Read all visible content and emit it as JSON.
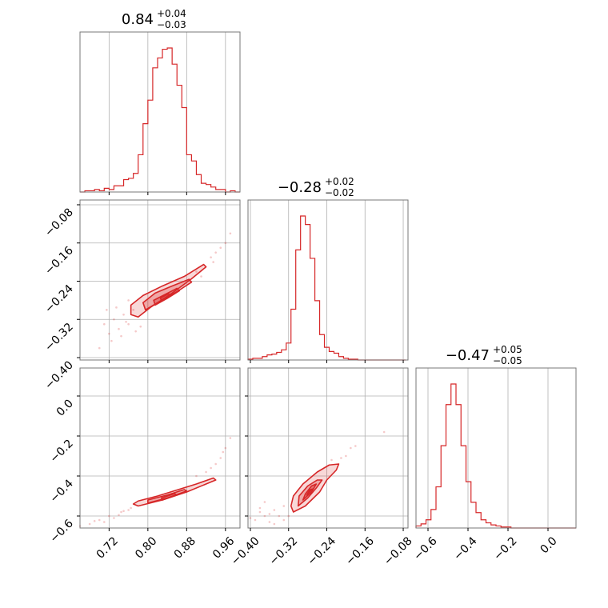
{
  "chart_data": {
    "type": "corner",
    "color": "#d62728",
    "grid": true,
    "params": [
      {
        "index": 0,
        "median": 0.84,
        "sigma_plus": 0.04,
        "sigma_minus": 0.03,
        "title_main": "0.84",
        "title_sup": "+0.04",
        "title_sub": "−0.03",
        "range": [
          0.66,
          0.99
        ],
        "ticks": [
          0.72,
          0.8,
          0.88,
          0.96
        ],
        "tick_labels": [
          "0.72",
          "0.80",
          "0.88",
          "0.96"
        ],
        "histogram": {
          "bin_edges": [
            0.66,
            0.67,
            0.68,
            0.69,
            0.7,
            0.71,
            0.72,
            0.73,
            0.74,
            0.75,
            0.76,
            0.77,
            0.78,
            0.79,
            0.8,
            0.81,
            0.82,
            0.83,
            0.84,
            0.85,
            0.86,
            0.87,
            0.88,
            0.89,
            0.9,
            0.91,
            0.92,
            0.93,
            0.94,
            0.95,
            0.96,
            0.97,
            0.98,
            0.99
          ],
          "counts": [
            0,
            1,
            1,
            2,
            1,
            3,
            2,
            5,
            5,
            10,
            11,
            15,
            30,
            55,
            74,
            100,
            108,
            115,
            116,
            103,
            86,
            68,
            30,
            25,
            14,
            7,
            6,
            4,
            2,
            2,
            0,
            1,
            0
          ]
        }
      },
      {
        "index": 1,
        "median": -0.28,
        "sigma_plus": 0.02,
        "sigma_minus": 0.02,
        "title_main": "−0.28",
        "title_sup": "+0.02",
        "title_sub": "−0.02",
        "range": [
          -0.405,
          -0.07
        ],
        "ticks": [
          -0.4,
          -0.32,
          -0.24,
          -0.16,
          -0.08
        ],
        "tick_labels": [
          "−0.40",
          "−0.32",
          "−0.24",
          "−0.16",
          "−0.08"
        ],
        "histogram": {
          "bin_edges": [
            -0.405,
            -0.395,
            -0.385,
            -0.375,
            -0.365,
            -0.355,
            -0.345,
            -0.335,
            -0.325,
            -0.315,
            -0.305,
            -0.295,
            -0.285,
            -0.275,
            -0.265,
            -0.255,
            -0.245,
            -0.235,
            -0.225,
            -0.215,
            -0.205,
            -0.195,
            -0.185,
            -0.175,
            -0.165,
            -0.155,
            -0.145,
            -0.135,
            -0.125,
            -0.115,
            -0.105,
            -0.095,
            -0.085,
            -0.075
          ],
          "counts": [
            1,
            2,
            2,
            4,
            6,
            7,
            9,
            12,
            20,
            60,
            130,
            170,
            160,
            120,
            70,
            30,
            15,
            10,
            8,
            4,
            2,
            1,
            1,
            0,
            0,
            0,
            0,
            0,
            0,
            0,
            0,
            0,
            0
          ]
        }
      },
      {
        "index": 2,
        "median": -0.47,
        "sigma_plus": 0.05,
        "sigma_minus": 0.05,
        "title_main": "−0.47",
        "title_sup": "+0.05",
        "title_sub": "−0.05",
        "range": [
          -0.66,
          0.14
        ],
        "ticks": [
          -0.6,
          -0.4,
          -0.2,
          0.0
        ],
        "tick_labels": [
          "−0.6",
          "−0.4",
          "−0.2",
          "0.0"
        ],
        "histogram": {
          "bin_edges": [
            -0.66,
            -0.635,
            -0.61,
            -0.585,
            -0.56,
            -0.535,
            -0.51,
            -0.485,
            -0.46,
            -0.435,
            -0.41,
            -0.385,
            -0.36,
            -0.335,
            -0.31,
            -0.285,
            -0.26,
            -0.235,
            -0.21,
            -0.185,
            -0.16,
            -0.135,
            -0.11,
            -0.085,
            -0.06,
            -0.035,
            -0.01,
            0.015,
            0.04,
            0.065,
            0.09,
            0.115,
            0.14
          ],
          "counts": [
            2,
            4,
            8,
            18,
            40,
            80,
            120,
            140,
            120,
            80,
            45,
            25,
            15,
            8,
            5,
            3,
            2,
            1,
            1,
            0,
            0,
            0,
            0,
            0,
            0,
            0,
            0,
            0,
            0,
            0,
            0,
            0
          ]
        }
      }
    ],
    "pairs": [
      {
        "x": 0,
        "y": 1,
        "contours": [
          [
            [
              0.78,
              -0.315
            ],
            [
              0.805,
              -0.295
            ],
            [
              0.85,
              -0.265
            ],
            [
              0.89,
              -0.235
            ],
            [
              0.92,
              -0.21
            ],
            [
              0.915,
              -0.205
            ],
            [
              0.875,
              -0.23
            ],
            [
              0.83,
              -0.25
            ],
            [
              0.79,
              -0.27
            ],
            [
              0.765,
              -0.29
            ],
            [
              0.765,
              -0.31
            ]
          ],
          [
            [
              0.795,
              -0.3
            ],
            [
              0.825,
              -0.282
            ],
            [
              0.86,
              -0.262
            ],
            [
              0.89,
              -0.242
            ],
            [
              0.885,
              -0.236
            ],
            [
              0.85,
              -0.25
            ],
            [
              0.815,
              -0.265
            ],
            [
              0.79,
              -0.285
            ]
          ],
          [
            [
              0.815,
              -0.29
            ],
            [
              0.84,
              -0.276
            ],
            [
              0.865,
              -0.26
            ],
            [
              0.86,
              -0.255
            ],
            [
              0.835,
              -0.268
            ],
            [
              0.812,
              -0.28
            ]
          ],
          [
            [
              0.828,
              -0.282
            ],
            [
              0.845,
              -0.272
            ],
            [
              0.843,
              -0.266
            ],
            [
              0.826,
              -0.275
            ]
          ]
        ],
        "points": [
          [
            0.7,
            -0.38
          ],
          [
            0.72,
            -0.35
          ],
          [
            0.74,
            -0.34
          ],
          [
            0.73,
            -0.32
          ],
          [
            0.75,
            -0.31
          ],
          [
            0.76,
            -0.33
          ],
          [
            0.745,
            -0.355
          ],
          [
            0.77,
            -0.3
          ],
          [
            0.71,
            -0.33
          ],
          [
            0.76,
            -0.28
          ],
          [
            0.9,
            -0.22
          ],
          [
            0.93,
            -0.19
          ],
          [
            0.95,
            -0.17
          ],
          [
            0.96,
            -0.16
          ],
          [
            0.935,
            -0.2
          ],
          [
            0.91,
            -0.23
          ],
          [
            0.755,
            -0.325
          ],
          [
            0.725,
            -0.365
          ],
          [
            0.775,
            -0.345
          ],
          [
            0.97,
            -0.14
          ],
          [
            0.715,
            -0.3
          ],
          [
            0.94,
            -0.18
          ],
          [
            0.735,
            -0.295
          ],
          [
            0.785,
            -0.335
          ]
        ]
      },
      {
        "x": 0,
        "y": 2,
        "contours": [
          [
            [
              0.78,
              -0.55
            ],
            [
              0.83,
              -0.52
            ],
            [
              0.88,
              -0.48
            ],
            [
              0.92,
              -0.44
            ],
            [
              0.94,
              -0.42
            ],
            [
              0.935,
              -0.41
            ],
            [
              0.9,
              -0.44
            ],
            [
              0.86,
              -0.47
            ],
            [
              0.82,
              -0.5
            ],
            [
              0.78,
              -0.525
            ],
            [
              0.77,
              -0.54
            ]
          ],
          [
            [
              0.8,
              -0.535
            ],
            [
              0.84,
              -0.51
            ],
            [
              0.88,
              -0.475
            ],
            [
              0.875,
              -0.468
            ],
            [
              0.84,
              -0.495
            ],
            [
              0.8,
              -0.52
            ]
          ],
          [
            [
              0.83,
              -0.52
            ],
            [
              0.86,
              -0.495
            ],
            [
              0.855,
              -0.488
            ],
            [
              0.828,
              -0.51
            ]
          ]
        ],
        "points": [
          [
            0.68,
            -0.64
          ],
          [
            0.7,
            -0.62
          ],
          [
            0.72,
            -0.6
          ],
          [
            0.74,
            -0.595
          ],
          [
            0.75,
            -0.575
          ],
          [
            0.76,
            -0.57
          ],
          [
            0.73,
            -0.61
          ],
          [
            0.71,
            -0.63
          ],
          [
            0.9,
            -0.4
          ],
          [
            0.92,
            -0.38
          ],
          [
            0.94,
            -0.34
          ],
          [
            0.95,
            -0.31
          ],
          [
            0.96,
            -0.26
          ],
          [
            0.97,
            -0.21
          ],
          [
            0.66,
            -0.65
          ],
          [
            0.765,
            -0.56
          ],
          [
            0.745,
            -0.58
          ],
          [
            0.93,
            -0.36
          ],
          [
            0.955,
            -0.28
          ],
          [
            0.69,
            -0.625
          ]
        ]
      },
      {
        "x": 1,
        "y": 2,
        "contours": [
          [
            [
              -0.31,
              -0.58
            ],
            [
              -0.285,
              -0.55
            ],
            [
              -0.255,
              -0.48
            ],
            [
              -0.24,
              -0.42
            ],
            [
              -0.22,
              -0.37
            ],
            [
              -0.215,
              -0.34
            ],
            [
              -0.235,
              -0.345
            ],
            [
              -0.26,
              -0.38
            ],
            [
              -0.29,
              -0.44
            ],
            [
              -0.31,
              -0.5
            ],
            [
              -0.315,
              -0.55
            ]
          ],
          [
            [
              -0.3,
              -0.55
            ],
            [
              -0.28,
              -0.51
            ],
            [
              -0.262,
              -0.46
            ],
            [
              -0.25,
              -0.42
            ],
            [
              -0.26,
              -0.42
            ],
            [
              -0.28,
              -0.45
            ],
            [
              -0.298,
              -0.5
            ]
          ],
          [
            [
              -0.29,
              -0.52
            ],
            [
              -0.272,
              -0.48
            ],
            [
              -0.262,
              -0.44
            ],
            [
              -0.272,
              -0.45
            ],
            [
              -0.285,
              -0.49
            ]
          ],
          [
            [
              -0.282,
              -0.495
            ],
            [
              -0.27,
              -0.465
            ],
            [
              -0.276,
              -0.47
            ]
          ]
        ],
        "points": [
          [
            -0.39,
            -0.62
          ],
          [
            -0.37,
            -0.6
          ],
          [
            -0.36,
            -0.59
          ],
          [
            -0.35,
            -0.57
          ],
          [
            -0.34,
            -0.6
          ],
          [
            -0.38,
            -0.58
          ],
          [
            -0.33,
            -0.55
          ],
          [
            -0.32,
            -0.6
          ],
          [
            -0.36,
            -0.63
          ],
          [
            -0.4,
            -0.61
          ],
          [
            -0.21,
            -0.31
          ],
          [
            -0.2,
            -0.3
          ],
          [
            -0.19,
            -0.26
          ],
          [
            -0.18,
            -0.25
          ],
          [
            -0.12,
            -0.18
          ],
          [
            -0.35,
            -0.64
          ],
          [
            -0.38,
            -0.56
          ],
          [
            -0.33,
            -0.62
          ],
          [
            -0.23,
            -0.32
          ],
          [
            -0.37,
            -0.53
          ]
        ]
      }
    ]
  }
}
